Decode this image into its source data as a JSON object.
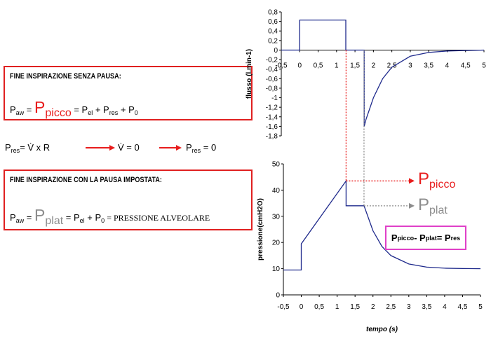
{
  "box1": {
    "title": "FINE INSPIRAZIONE SENZA PAUSA:",
    "P": "P",
    "aw": "aw",
    "eq1": " = ",
    "Ppicco_P": "P",
    "Ppicco_sub": "picco",
    "eq2": " = P",
    "el": "el",
    "plus1": " + P",
    "res": "res",
    "plus2": " + P",
    "zero": "0"
  },
  "rline": {
    "P": "P",
    "res": "res",
    "eq": "= V̇ x R",
    "v0": "V̇ = 0",
    "P2": "P",
    "res2": "res",
    "eq0": " = 0"
  },
  "box2": {
    "title": "FINE INSPIRAZIONE CON LA PAUSA IMPOSTATA:",
    "P": "P",
    "aw": "aw",
    "eq1": " = ",
    "Pplat_P": "P",
    "Pplat_sub": "plat",
    "eq2": " = P",
    "el": "el",
    "plus1": " + P",
    "zero": "0",
    "tail": " = PRESSIONE ALVEOLARE"
  },
  "labels": {
    "picco_P": "P",
    "picco_sub": "picco",
    "plat_P": "P",
    "plat_sub": "plat",
    "res_box": {
      "P1": "P",
      "s1": "picco",
      "dash": "- P",
      "s2": "plat",
      "eq": " = P",
      "s3": "res"
    }
  },
  "colors": {
    "red": "#e81c1c",
    "grey": "#8c8c8c",
    "navy": "#1f2a8c",
    "magenta": "#e040c8"
  },
  "chart_data": [
    {
      "type": "line",
      "ylabel": "flusso (l.min-1)",
      "xlabel": "",
      "xlim": [
        -0.5,
        5
      ],
      "ylim": [
        -1.8,
        0.8
      ],
      "xticks": [
        "-0,5",
        "0",
        "0,5",
        "1",
        "1,5",
        "2",
        "2,5",
        "3",
        "3,5",
        "4",
        "4,5",
        "5"
      ],
      "yticks": [
        "0,8",
        "0,6",
        "0,4",
        "0,2",
        "0",
        "-0,2",
        "-0,4",
        "-0,6",
        "-0,8",
        "-1",
        "-1,2",
        "-1,4",
        "-1,6",
        "-1,8"
      ],
      "series": [
        {
          "x": [
            -0.5,
            0,
            0,
            1.25,
            1.25,
            1.75,
            1.75,
            1.8,
            2.0,
            2.25,
            2.5,
            3.0,
            3.5,
            4.0,
            4.5,
            5.0
          ],
          "y": [
            0,
            0,
            0.63,
            0.63,
            0,
            0,
            -1.6,
            -1.45,
            -1.0,
            -0.6,
            -0.36,
            -0.13,
            -0.05,
            -0.02,
            -0.01,
            0
          ]
        }
      ]
    },
    {
      "type": "line",
      "ylabel": "pressione(cmH2O)",
      "xlabel": "tempo (s)",
      "xlim": [
        -0.5,
        5
      ],
      "ylim": [
        0,
        50
      ],
      "xticks": [
        "-0,5",
        "0",
        "0,5",
        "1",
        "1,5",
        "2",
        "2,5",
        "3",
        "3,5",
        "4",
        "4,5",
        "5"
      ],
      "yticks": [
        "50",
        "40",
        "30",
        "20",
        "10",
        "0"
      ],
      "series": [
        {
          "x": [
            -0.5,
            0,
            0,
            1.25,
            1.25,
            1.75,
            2.0,
            2.25,
            2.5,
            3.0,
            3.5,
            4.0,
            4.5,
            5.0
          ],
          "y": [
            9.5,
            9.5,
            19.5,
            43.5,
            34,
            34,
            24.5,
            18.5,
            15,
            11.8,
            10.6,
            10.2,
            10.05,
            10
          ]
        }
      ]
    }
  ]
}
